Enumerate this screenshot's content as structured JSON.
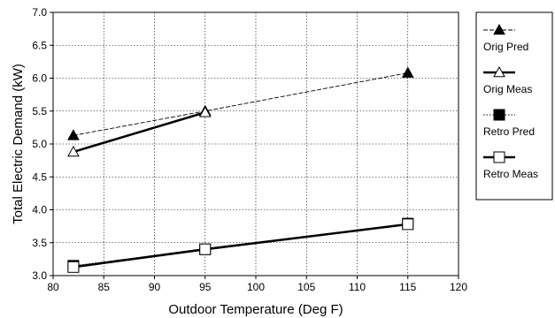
{
  "chart_data": {
    "type": "line",
    "xlabel": "Outdoor Temperature (Deg F)",
    "ylabel": "Total Electric Demand (kW)",
    "xlim": [
      80,
      120
    ],
    "ylim": [
      3.0,
      7.0
    ],
    "x_ticks": [
      "80",
      "85",
      "90",
      "95",
      "100",
      "105",
      "110",
      "115",
      "120"
    ],
    "y_ticks": [
      "3.0",
      "3.5",
      "4.0",
      "4.5",
      "5.0",
      "5.5",
      "6.0",
      "6.5",
      "7.0"
    ],
    "grid": true,
    "legend_position": "right",
    "series": [
      {
        "name": "Orig Pred",
        "marker": "filled-triangle",
        "line": "dashed-thin",
        "x": [
          82,
          95,
          115
        ],
        "y": [
          5.13,
          5.5,
          6.08
        ]
      },
      {
        "name": "Orig Meas",
        "marker": "open-triangle",
        "line": "solid-thick",
        "x": [
          82,
          95
        ],
        "y": [
          4.88,
          5.48
        ]
      },
      {
        "name": "Retro Pred",
        "marker": "filled-square",
        "line": "dotted-thin",
        "x": [
          82,
          95,
          115
        ],
        "y": [
          3.15,
          3.4,
          3.79
        ]
      },
      {
        "name": "Retro Meas",
        "marker": "open-square",
        "line": "solid-thick",
        "x": [
          82,
          95,
          115
        ],
        "y": [
          3.13,
          3.4,
          3.78
        ]
      }
    ]
  }
}
